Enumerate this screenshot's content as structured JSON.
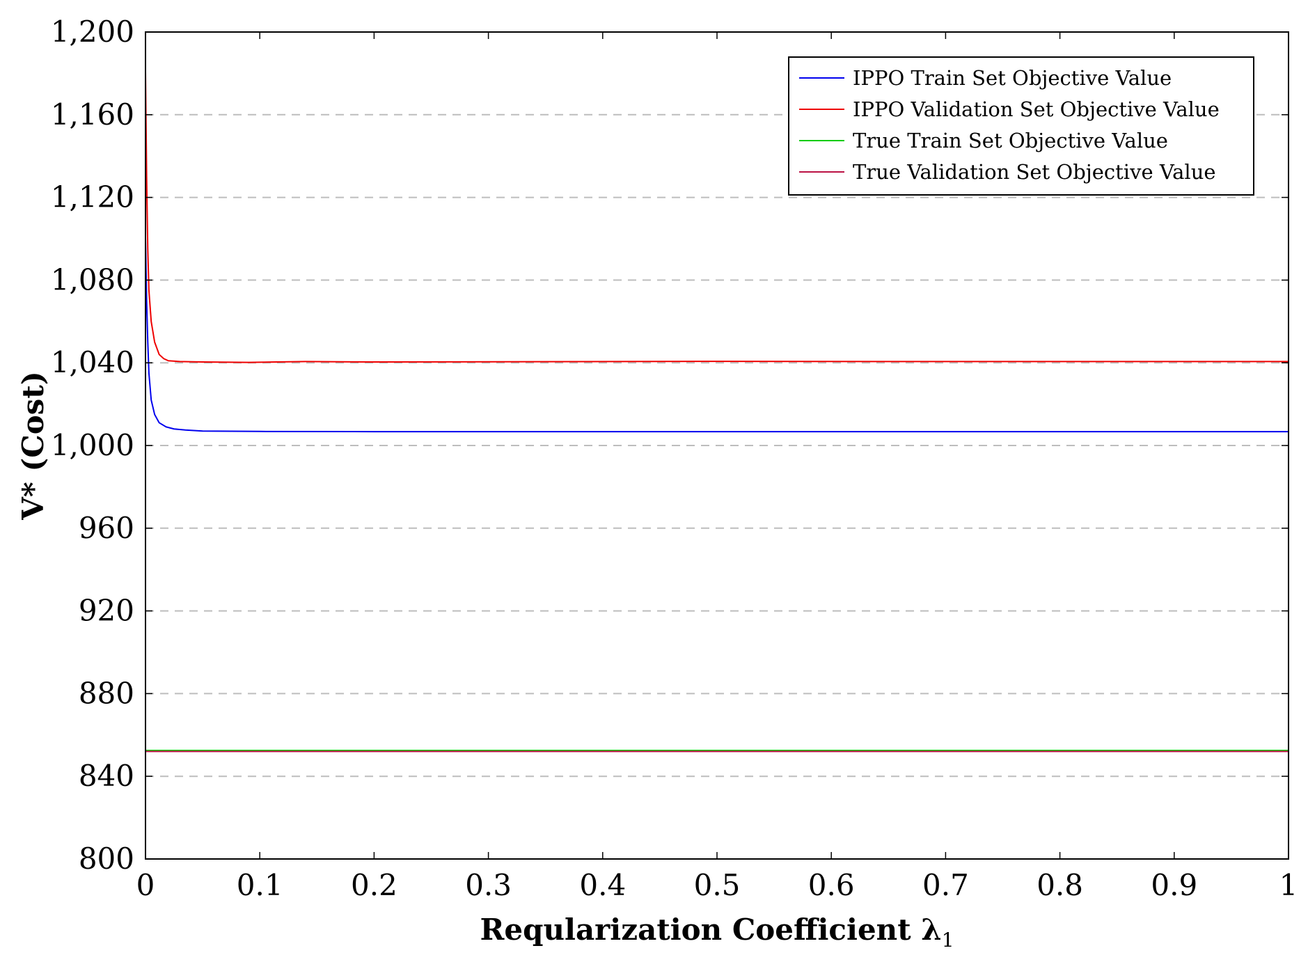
{
  "chart_data": {
    "type": "line",
    "xlabel": "Reqularization Coefficient λ",
    "xlabel_subscript": "1",
    "ylabel": "V* (Cost)",
    "xlim": [
      0,
      1
    ],
    "ylim": [
      800,
      1200
    ],
    "x_ticks": [
      0,
      0.1,
      0.2,
      0.3,
      0.4,
      0.5,
      0.6,
      0.7,
      0.8,
      0.9,
      1
    ],
    "x_tick_labels": [
      "0",
      "0.1",
      "0.2",
      "0.3",
      "0.4",
      "0.5",
      "0.6",
      "0.7",
      "0.8",
      "0.9",
      "1"
    ],
    "y_ticks": [
      800,
      840,
      880,
      920,
      960,
      1000,
      1040,
      1080,
      1120,
      1160,
      1200
    ],
    "y_tick_labels": [
      "800",
      "840",
      "880",
      "920",
      "960",
      "1,000",
      "1,040",
      "1,080",
      "1,120",
      "1,160",
      "1,200"
    ],
    "grid": "horizontal dashed",
    "legend_position": "top-right",
    "series": [
      {
        "name": "IPPO Train Set Objective Value",
        "color": "#0000ee",
        "x": [
          0,
          0.001,
          0.002,
          0.003,
          0.005,
          0.008,
          0.012,
          0.018,
          0.025,
          0.035,
          0.05,
          0.1,
          0.2,
          0.4,
          0.6,
          0.8,
          1.0
        ],
        "y": [
          1100,
          1070,
          1050,
          1035,
          1022,
          1015,
          1011,
          1009,
          1008,
          1007.5,
          1007,
          1006.8,
          1006.7,
          1006.7,
          1006.7,
          1006.7,
          1006.7
        ]
      },
      {
        "name": "IPPO Validation Set Objective Value",
        "color": "#ee0000",
        "x": [
          0,
          0.001,
          0.002,
          0.003,
          0.005,
          0.008,
          0.012,
          0.016,
          0.02,
          0.03,
          0.05,
          0.09,
          0.14,
          0.2,
          0.3,
          0.5,
          0.7,
          1.0
        ],
        "y": [
          1181,
          1130,
          1095,
          1075,
          1060,
          1050,
          1044,
          1042,
          1041,
          1040.6,
          1040.4,
          1040.2,
          1040.6,
          1040.4,
          1040.5,
          1040.7,
          1040.6,
          1040.6
        ]
      },
      {
        "name": "True Train Set Objective Value",
        "color": "#00cc00",
        "x": [
          0,
          1
        ],
        "y": [
          852.5,
          852.5
        ]
      },
      {
        "name": "True Validation Set Objective Value",
        "color": "#bb1144",
        "x": [
          0,
          1
        ],
        "y": [
          852,
          852
        ]
      }
    ]
  }
}
